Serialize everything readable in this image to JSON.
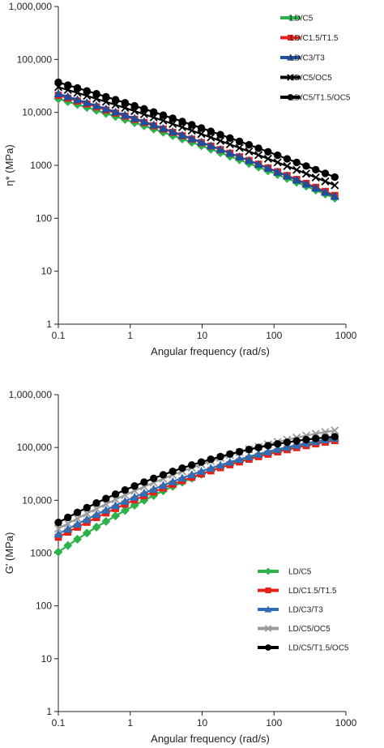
{
  "chart_data": [
    {
      "type": "line",
      "title": "",
      "xlabel": "Angular frequency (rad/s)",
      "ylabel": "η* (MPa)",
      "xscale": "log",
      "yscale": "log",
      "xlim": [
        0.1,
        1000
      ],
      "ylim": [
        1,
        1000000
      ],
      "x_tick_labels": [
        "0.1",
        "1",
        "10",
        "100",
        "1000"
      ],
      "y_tick_labels": [
        "1",
        "10",
        "100",
        "1000",
        "10,000",
        "100,000",
        "1,000,000"
      ],
      "grid": false,
      "legend_position": "top-right",
      "series": [
        {
          "name": "LD/C5",
          "color": "#2bb34a",
          "marker": "diamond",
          "start": 18000,
          "end": 240,
          "curve": 0.18
        },
        {
          "name": "LD/C1.5/T1.5",
          "color": "#e2231a",
          "marker": "square",
          "start": 21000,
          "end": 270,
          "curve": 0.18
        },
        {
          "name": "LD/C3/T3",
          "color": "#1f4e9c",
          "marker": "triangle",
          "start": 22500,
          "end": 260,
          "curve": 0.18
        },
        {
          "name": "LD/C5/OC5",
          "color": "#000000",
          "marker": "x",
          "start": 30000,
          "end": 420,
          "curve": 0.16
        },
        {
          "name": "LD/C5/T1.5/OC5",
          "color": "#000000",
          "marker": "circle",
          "start": 37000,
          "end": 600,
          "curve": 0.14
        }
      ]
    },
    {
      "type": "line",
      "title": "",
      "xlabel": "Angular frequency (rad/s)",
      "ylabel": "G' (MPa)",
      "xscale": "log",
      "yscale": "log",
      "xlim": [
        0.1,
        1000
      ],
      "ylim": [
        1,
        1000000
      ],
      "x_tick_labels": [
        "0.1",
        "1",
        "10",
        "100",
        "1000"
      ],
      "y_tick_labels": [
        "1",
        "10",
        "100",
        "1000",
        "10,000",
        "100,000",
        "1,000,000"
      ],
      "grid": false,
      "legend_position": "bottom-right",
      "series": [
        {
          "name": "LD/C5",
          "color": "#2bb34a",
          "marker": "diamond",
          "start": 1050,
          "end": 140000,
          "curve": 0.7
        },
        {
          "name": "LD/C1.5/T1.5",
          "color": "#e2231a",
          "marker": "square",
          "start": 2000,
          "end": 135000,
          "curve": 0.55
        },
        {
          "name": "LD/C3/T3",
          "color": "#2f6db5",
          "marker": "triangle",
          "start": 2300,
          "end": 150000,
          "curve": 0.55
        },
        {
          "name": "LD/C5/OC5",
          "color": "#9a9a9a",
          "marker": "x",
          "start": 2900,
          "end": 210000,
          "curve": 0.55
        },
        {
          "name": "LD/C5/T1.5/OC5",
          "color": "#000000",
          "marker": "circle",
          "start": 3800,
          "end": 160000,
          "curve": 0.75
        }
      ]
    }
  ]
}
